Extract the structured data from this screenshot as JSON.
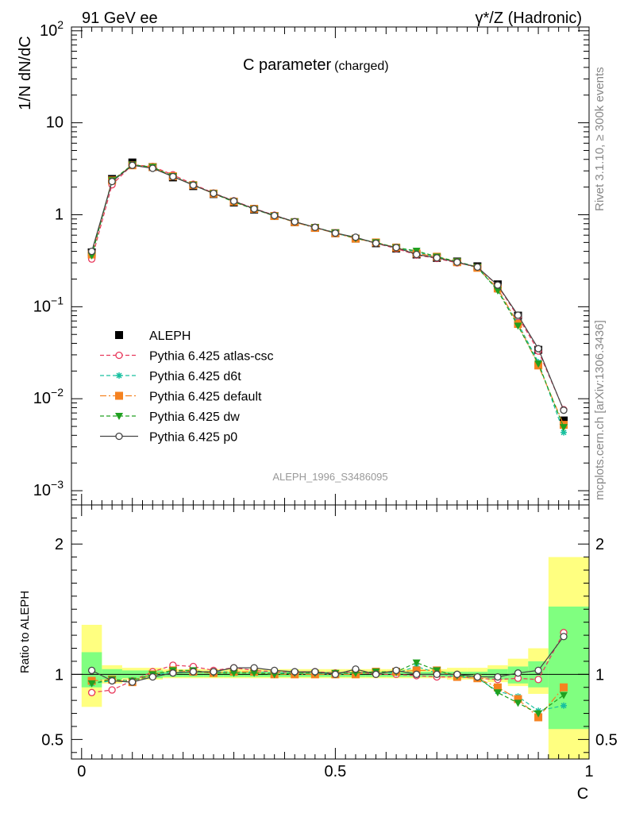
{
  "header": {
    "left": "91 GeV ee",
    "right": "γ*/Z (Hadronic)"
  },
  "side_labels": {
    "rivet": "Rivet 3.1.10, ≥ 300k events",
    "mcplots": "mcplots.cern.ch [arXiv:1306.3436]"
  },
  "chart_data": [
    {
      "type": "line",
      "title_main": "C parameter",
      "title_sub": "(charged)",
      "ylabel": "1/N dN/dC",
      "yscale": "log",
      "ylim": [
        0.0007,
        110
      ],
      "xlim": [
        -0.02,
        1.0
      ],
      "yticks": [
        {
          "v": 100,
          "b": "10",
          "e": "2"
        },
        {
          "v": 10,
          "b": "10",
          "e": ""
        },
        {
          "v": 1,
          "b": "1",
          "e": ""
        },
        {
          "v": 0.1,
          "b": "10",
          "e": "−1"
        },
        {
          "v": 0.01,
          "b": "10",
          "e": "−2"
        },
        {
          "v": 0.001,
          "b": "10",
          "e": "−3"
        }
      ],
      "analysis_label": "ALEPH_1996_S3486095",
      "legend_position": "middle-left",
      "x": [
        0.02,
        0.06,
        0.1,
        0.14,
        0.18,
        0.22,
        0.26,
        0.3,
        0.34,
        0.38,
        0.42,
        0.46,
        0.5,
        0.54,
        0.58,
        0.62,
        0.66,
        0.7,
        0.74,
        0.78,
        0.82,
        0.86,
        0.9,
        0.95
      ],
      "series": [
        {
          "name": "ALEPH",
          "color": "#000000",
          "marker": "square",
          "values": [
            0.39,
            2.45,
            3.7,
            3.3,
            2.55,
            2.05,
            1.68,
            1.36,
            1.14,
            0.97,
            0.83,
            0.72,
            0.63,
            0.55,
            0.49,
            0.43,
            0.37,
            0.34,
            0.31,
            0.275,
            0.175,
            0.08,
            0.034,
            0.0058
          ]
        },
        {
          "name": "Pythia 6.425 atlas-csc",
          "color": "#e8385b",
          "marker": "open-circle",
          "dash": "5,3",
          "values": [
            0.33,
            2.12,
            3.5,
            3.35,
            2.72,
            2.15,
            1.72,
            1.42,
            1.17,
            0.99,
            0.84,
            0.73,
            0.635,
            0.56,
            0.49,
            0.43,
            0.365,
            0.335,
            0.3,
            0.27,
            0.17,
            0.078,
            0.033,
            0.0076
          ]
        },
        {
          "name": "Pythia 6.425 d6t",
          "color": "#19c0a0",
          "marker": "star",
          "dash": "5,3",
          "values": [
            0.36,
            2.33,
            3.45,
            3.25,
            2.62,
            2.1,
            1.71,
            1.39,
            1.16,
            0.98,
            0.84,
            0.725,
            0.63,
            0.555,
            0.5,
            0.435,
            0.395,
            0.345,
            0.305,
            0.265,
            0.152,
            0.066,
            0.025,
            0.0043
          ]
        },
        {
          "name": "Pythia 6.425 default",
          "color": "#f58220",
          "marker": "square",
          "dash": "8,3,2,3",
          "values": [
            0.37,
            2.36,
            3.45,
            3.3,
            2.62,
            2.1,
            1.7,
            1.39,
            1.16,
            0.97,
            0.83,
            0.72,
            0.63,
            0.55,
            0.5,
            0.44,
            0.38,
            0.35,
            0.305,
            0.265,
            0.158,
            0.065,
            0.023,
            0.0052
          ]
        },
        {
          "name": "Pythia 6.425 dw",
          "color": "#20a020",
          "marker": "down-triangle",
          "dash": "5,3",
          "values": [
            0.36,
            2.36,
            3.5,
            3.3,
            2.62,
            2.11,
            1.7,
            1.38,
            1.15,
            0.97,
            0.84,
            0.73,
            0.64,
            0.555,
            0.5,
            0.44,
            0.405,
            0.35,
            0.31,
            0.27,
            0.15,
            0.062,
            0.024,
            0.0049
          ]
        },
        {
          "name": "Pythia 6.425 p0",
          "color": "#444444",
          "marker": "open-circle",
          "dash": "",
          "values": [
            0.4,
            2.3,
            3.45,
            3.2,
            2.6,
            2.1,
            1.71,
            1.41,
            1.16,
            0.98,
            0.84,
            0.73,
            0.632,
            0.57,
            0.49,
            0.44,
            0.37,
            0.34,
            0.305,
            0.27,
            0.172,
            0.081,
            0.035,
            0.0075
          ]
        }
      ]
    },
    {
      "type": "line",
      "ylabel": "Ratio to ALEPH",
      "xlabel": "C",
      "ylim": [
        0.35,
        2.3
      ],
      "xlim": [
        -0.02,
        1.0
      ],
      "yticks": [
        0.5,
        1,
        2
      ],
      "xticks": [
        0,
        0.5,
        1
      ],
      "x": [
        0.02,
        0.06,
        0.1,
        0.14,
        0.18,
        0.22,
        0.26,
        0.3,
        0.34,
        0.38,
        0.42,
        0.46,
        0.5,
        0.54,
        0.58,
        0.62,
        0.66,
        0.7,
        0.74,
        0.78,
        0.82,
        0.86,
        0.9,
        0.95
      ],
      "x_bin_edges": [
        0,
        0.04,
        0.08,
        0.12,
        0.16,
        0.2,
        0.24,
        0.28,
        0.32,
        0.36,
        0.4,
        0.44,
        0.48,
        0.52,
        0.56,
        0.6,
        0.64,
        0.68,
        0.72,
        0.76,
        0.8,
        0.84,
        0.88,
        0.92,
        1.0
      ],
      "uncertainty_bands": {
        "yellow_color": "#ffff80",
        "green_color": "#80ff80",
        "yellow": [
          [
            0.75,
            1.38
          ],
          [
            0.93,
            1.07
          ],
          [
            0.96,
            1.05
          ],
          [
            0.96,
            1.05
          ],
          [
            0.97,
            1.04
          ],
          [
            0.97,
            1.04
          ],
          [
            0.97,
            1.04
          ],
          [
            0.97,
            1.04
          ],
          [
            0.97,
            1.04
          ],
          [
            0.97,
            1.04
          ],
          [
            0.97,
            1.04
          ],
          [
            0.97,
            1.04
          ],
          [
            0.97,
            1.04
          ],
          [
            0.97,
            1.04
          ],
          [
            0.97,
            1.04
          ],
          [
            0.97,
            1.04
          ],
          [
            0.97,
            1.04
          ],
          [
            0.97,
            1.04
          ],
          [
            0.96,
            1.05
          ],
          [
            0.96,
            1.05
          ],
          [
            0.94,
            1.07
          ],
          [
            0.91,
            1.12
          ],
          [
            0.85,
            1.2
          ],
          [
            0.35,
            1.9
          ]
        ],
        "green": [
          [
            0.9,
            1.17
          ],
          [
            0.96,
            1.04
          ],
          [
            0.97,
            1.03
          ],
          [
            0.97,
            1.03
          ],
          [
            0.98,
            1.02
          ],
          [
            0.98,
            1.02
          ],
          [
            0.98,
            1.02
          ],
          [
            0.98,
            1.02
          ],
          [
            0.98,
            1.02
          ],
          [
            0.98,
            1.02
          ],
          [
            0.98,
            1.02
          ],
          [
            0.98,
            1.02
          ],
          [
            0.98,
            1.02
          ],
          [
            0.98,
            1.02
          ],
          [
            0.98,
            1.02
          ],
          [
            0.98,
            1.02
          ],
          [
            0.98,
            1.02
          ],
          [
            0.98,
            1.02
          ],
          [
            0.98,
            1.02
          ],
          [
            0.98,
            1.02
          ],
          [
            0.96,
            1.04
          ],
          [
            0.93,
            1.06
          ],
          [
            0.9,
            1.1
          ],
          [
            0.58,
            1.52
          ]
        ]
      },
      "series": [
        {
          "name": "Pythia 6.425 atlas-csc",
          "color": "#e8385b",
          "marker": "open-circle",
          "dash": "5,3",
          "values": [
            0.86,
            0.88,
            0.95,
            1.02,
            1.07,
            1.06,
            1.03,
            1.05,
            1.03,
            1.02,
            1.01,
            1.02,
            1.01,
            1.02,
            1.0,
            1.0,
            0.99,
            0.98,
            0.98,
            0.97,
            0.96,
            0.97,
            0.96,
            1.32
          ]
        },
        {
          "name": "Pythia 6.425 d6t",
          "color": "#19c0a0",
          "marker": "star",
          "dash": "5,3",
          "values": [
            0.93,
            0.95,
            0.94,
            0.99,
            1.02,
            1.02,
            1.02,
            1.02,
            1.02,
            1.01,
            1.01,
            1.01,
            1.0,
            1.01,
            1.02,
            1.01,
            1.06,
            1.01,
            0.98,
            0.97,
            0.87,
            0.83,
            0.72,
            0.76
          ]
        },
        {
          "name": "Pythia 6.425 default",
          "color": "#f58220",
          "marker": "square",
          "dash": "8,3,2,3",
          "values": [
            0.95,
            0.96,
            0.94,
            1.0,
            1.03,
            1.02,
            1.01,
            1.02,
            1.02,
            1.0,
            1.0,
            1.0,
            1.0,
            1.0,
            1.02,
            1.02,
            1.03,
            1.03,
            0.98,
            0.97,
            0.9,
            0.81,
            0.67,
            0.9
          ]
        },
        {
          "name": "Pythia 6.425 dw",
          "color": "#20a020",
          "marker": "down-triangle",
          "dash": "5,3",
          "values": [
            0.93,
            0.96,
            0.95,
            1.0,
            1.03,
            1.03,
            1.01,
            1.01,
            1.01,
            1.0,
            1.01,
            1.01,
            1.01,
            1.01,
            1.02,
            1.02,
            1.09,
            1.03,
            0.99,
            0.98,
            0.86,
            0.78,
            0.7,
            0.84
          ]
        },
        {
          "name": "Pythia 6.425 p0",
          "color": "#444444",
          "marker": "open-circle",
          "dash": "",
          "values": [
            1.03,
            0.95,
            0.94,
            0.98,
            1.01,
            1.02,
            1.02,
            1.05,
            1.05,
            1.03,
            1.02,
            1.02,
            1.0,
            1.04,
            1.0,
            1.03,
            1.0,
            1.0,
            1.0,
            0.98,
            0.98,
            1.01,
            1.03,
            1.29
          ]
        }
      ]
    }
  ]
}
